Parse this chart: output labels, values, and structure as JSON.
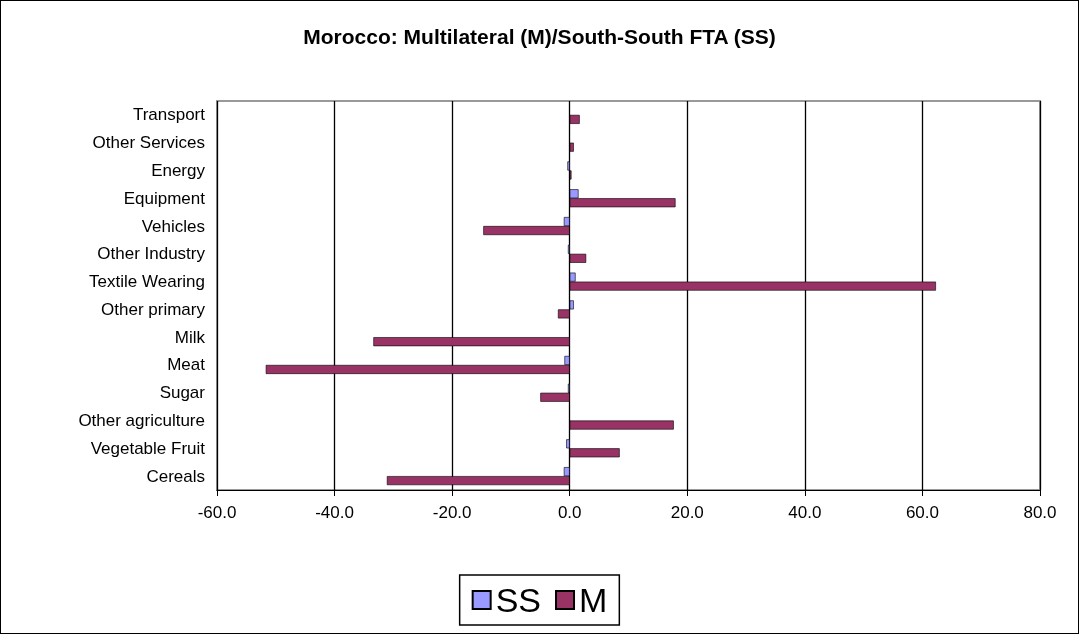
{
  "chart_data": {
    "type": "bar",
    "orientation": "horizontal",
    "title": "Morocco: Multilateral (M)/South-South FTA (SS)",
    "categories": [
      "Transport",
      "Other Services",
      "Energy",
      "Equipment",
      "Vehicles",
      "Other Industry",
      "Textile Wearing",
      "Other primary",
      "Milk",
      "Meat",
      "Sugar",
      "Other agriculture",
      "Vegetable Fruit",
      "Cereals"
    ],
    "series": [
      {
        "name": "SS",
        "color": "#9999ff",
        "values": [
          null,
          null,
          -0.4,
          1.5,
          -1.0,
          -0.3,
          1.0,
          0.7,
          null,
          -0.9,
          -0.3,
          null,
          -0.6,
          -1.0
        ]
      },
      {
        "name": "M",
        "color": "#993366",
        "values": [
          1.7,
          0.7,
          0.3,
          18.0,
          -14.7,
          2.8,
          62.3,
          -2.0,
          -33.4,
          -51.7,
          -5.0,
          17.7,
          8.5,
          -31.1
        ]
      }
    ],
    "xlim": [
      -60,
      80
    ],
    "xticks": [
      {
        "value": -60,
        "label": "-60.0"
      },
      {
        "value": -40,
        "label": "-40.0"
      },
      {
        "value": -20,
        "label": "-20.0"
      },
      {
        "value": 0,
        "label": "0.0"
      },
      {
        "value": 20,
        "label": "20.0"
      },
      {
        "value": 40,
        "label": "40.0"
      },
      {
        "value": 60,
        "label": "60.0"
      },
      {
        "value": 80,
        "label": "80.0"
      }
    ],
    "grid": "x",
    "legend": "bottom"
  }
}
